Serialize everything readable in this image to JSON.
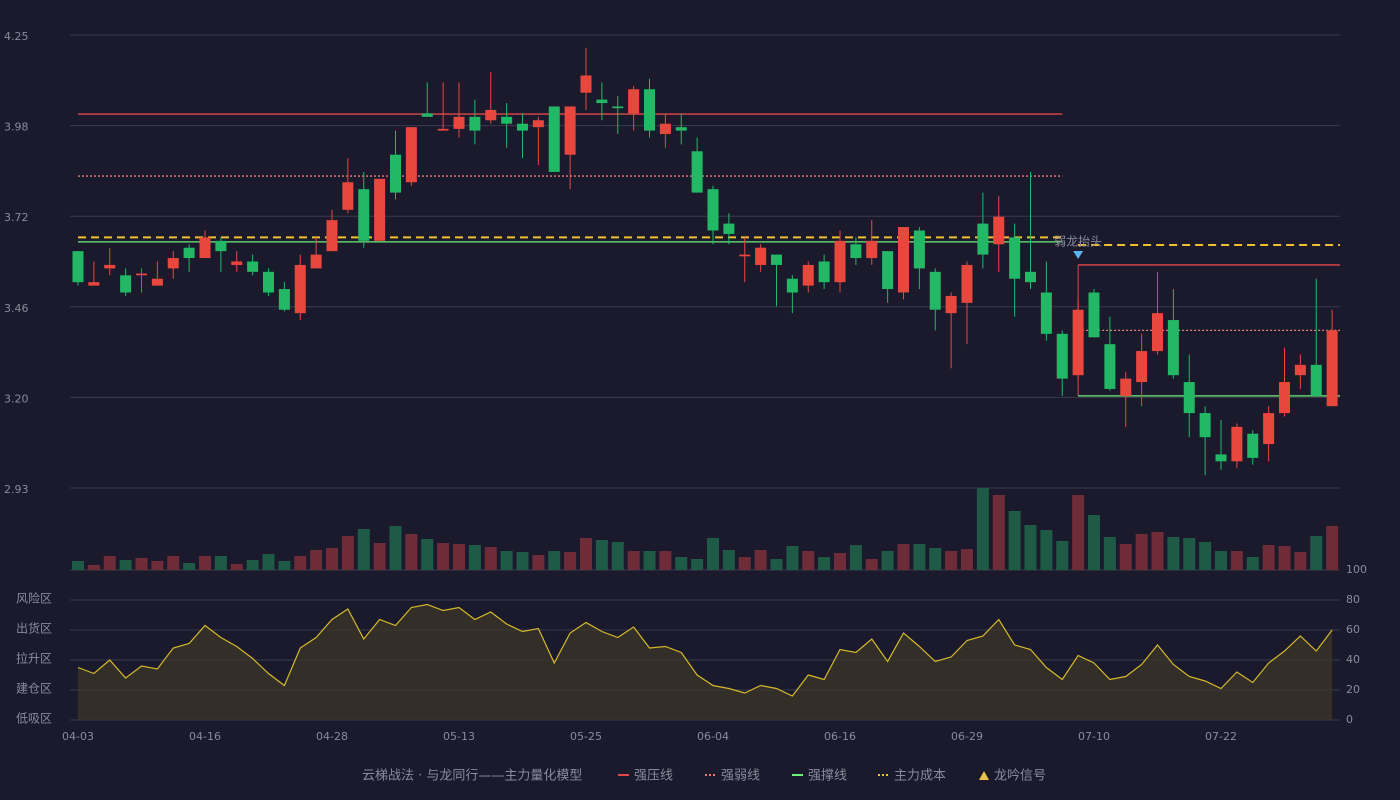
{
  "chart_data": {
    "type": "candlestick",
    "subtitle": "云梯战法 · 与龙同行——主力量化模型",
    "subtitle_color": "#e8c070",
    "categories": [
      "04-03",
      null,
      null,
      null,
      null,
      null,
      null,
      null,
      "04-16",
      null,
      null,
      null,
      null,
      null,
      null,
      null,
      "04-28",
      null,
      null,
      null,
      null,
      null,
      null,
      null,
      "05-13",
      null,
      null,
      null,
      null,
      null,
      null,
      null,
      "05-25",
      null,
      null,
      null,
      null,
      null,
      null,
      null,
      "06-04",
      null,
      null,
      null,
      null,
      null,
      null,
      null,
      "06-16",
      null,
      null,
      null,
      null,
      null,
      null,
      null,
      "06-29",
      null,
      null,
      null,
      null,
      null,
      null,
      null,
      "07-10",
      null,
      null,
      null,
      null,
      null,
      null,
      null,
      "07-22",
      null,
      null,
      null,
      null,
      null,
      null,
      null
    ],
    "open": [
      3.62,
      3.52,
      3.57,
      3.55,
      3.55,
      3.52,
      3.57,
      3.63,
      3.6,
      3.65,
      3.58,
      3.59,
      3.56,
      3.51,
      3.44,
      3.57,
      3.62,
      3.74,
      3.8,
      3.65,
      3.9,
      3.82,
      4.02,
      3.97,
      3.975,
      4.01,
      4.0,
      4.01,
      3.99,
      3.98,
      4.04,
      3.9,
      4.08,
      4.06,
      4.04,
      4.02,
      4.09,
      3.96,
      3.98,
      3.91,
      3.8,
      3.7,
      3.605,
      3.58,
      3.61,
      3.54,
      3.52,
      3.59,
      3.53,
      3.64,
      3.6,
      3.62,
      3.5,
      3.68,
      3.56,
      3.44,
      3.47,
      3.7,
      3.64,
      3.66,
      3.56,
      3.5,
      3.38,
      3.26,
      3.5,
      3.35,
      3.2,
      3.24,
      3.33,
      3.42,
      3.24,
      3.15,
      3.03,
      3.01,
      3.09,
      3.06,
      3.15,
      3.26,
      3.29,
      3.17
    ],
    "close": [
      3.53,
      3.53,
      3.58,
      3.5,
      3.555,
      3.54,
      3.6,
      3.6,
      3.66,
      3.62,
      3.59,
      3.56,
      3.5,
      3.45,
      3.58,
      3.61,
      3.71,
      3.82,
      3.65,
      3.83,
      3.79,
      3.98,
      4.01,
      3.975,
      4.01,
      3.97,
      4.03,
      3.99,
      3.97,
      4.0,
      3.85,
      4.04,
      4.13,
      4.05,
      4.035,
      4.09,
      3.97,
      3.99,
      3.97,
      3.79,
      3.68,
      3.67,
      3.61,
      3.63,
      3.58,
      3.5,
      3.58,
      3.53,
      3.65,
      3.6,
      3.65,
      3.51,
      3.69,
      3.57,
      3.45,
      3.49,
      3.58,
      3.61,
      3.72,
      3.54,
      3.53,
      3.38,
      3.25,
      3.45,
      3.37,
      3.22,
      3.25,
      3.33,
      3.44,
      3.26,
      3.15,
      3.08,
      3.01,
      3.11,
      3.02,
      3.15,
      3.24,
      3.29,
      3.2,
      3.39
    ],
    "high": [
      3.62,
      3.59,
      3.63,
      3.57,
      3.57,
      3.59,
      3.62,
      3.64,
      3.68,
      3.66,
      3.62,
      3.61,
      3.57,
      3.53,
      3.61,
      3.66,
      3.74,
      3.89,
      3.85,
      3.83,
      3.97,
      3.98,
      4.11,
      4.11,
      4.11,
      4.06,
      4.14,
      4.05,
      4.02,
      4.01,
      4.04,
      4.04,
      4.21,
      4.11,
      4.07,
      4.1,
      4.12,
      4.02,
      4.02,
      3.95,
      3.81,
      3.73,
      3.66,
      3.64,
      3.61,
      3.55,
      3.59,
      3.61,
      3.68,
      3.66,
      3.71,
      3.62,
      3.69,
      3.69,
      3.57,
      3.5,
      3.59,
      3.79,
      3.78,
      3.7,
      3.85,
      3.59,
      3.39,
      3.48,
      3.51,
      3.43,
      3.27,
      3.38,
      3.56,
      3.51,
      3.32,
      3.17,
      3.13,
      3.12,
      3.1,
      3.17,
      3.34,
      3.32,
      3.54,
      3.45
    ],
    "low": [
      3.52,
      3.52,
      3.55,
      3.49,
      3.5,
      3.52,
      3.54,
      3.56,
      3.6,
      3.56,
      3.56,
      3.55,
      3.49,
      3.445,
      3.42,
      3.57,
      3.62,
      3.73,
      3.63,
      3.65,
      3.77,
      3.81,
      4.01,
      3.97,
      3.95,
      3.93,
      3.99,
      3.92,
      3.89,
      3.87,
      3.85,
      3.8,
      4.03,
      4.0,
      3.96,
      3.97,
      3.95,
      3.92,
      3.93,
      3.79,
      3.64,
      3.64,
      3.53,
      3.56,
      3.46,
      3.44,
      3.5,
      3.51,
      3.5,
      3.58,
      3.58,
      3.47,
      3.48,
      3.51,
      3.39,
      3.28,
      3.35,
      3.57,
      3.56,
      3.43,
      3.51,
      3.36,
      3.2,
      3.25,
      3.37,
      3.215,
      3.11,
      3.17,
      3.32,
      3.25,
      3.08,
      2.97,
      2.985,
      2.99,
      3.0,
      3.01,
      3.14,
      3.22,
      3.2,
      3.17
    ],
    "up_color": "#e8473e",
    "down_color": "#22b865",
    "ylim": [
      2.9325,
      4.2475
    ],
    "yticks": [
      {
        "value": 2.9325,
        "label": "2.93"
      },
      {
        "value": 3.1955,
        "label": "3.20"
      },
      {
        "value": 3.4585,
        "label": "3.46"
      },
      {
        "value": 3.7215,
        "label": "3.72"
      },
      {
        "value": 3.9845,
        "label": "3.98"
      },
      {
        "value": 4.2475,
        "label": "4.25"
      }
    ],
    "grid": true,
    "levels": [
      {
        "name": "强压线",
        "color": "#e04848",
        "dash": "solid",
        "values": [
          4.018,
          4.018,
          4.018,
          4.018,
          4.018,
          4.018,
          4.018,
          4.018,
          4.018,
          4.018,
          4.018,
          4.018,
          4.018,
          4.018,
          4.018,
          4.018,
          4.018,
          4.018,
          4.018,
          4.018,
          4.018,
          4.018,
          4.018,
          4.018,
          4.018,
          4.018,
          4.018,
          4.018,
          4.018,
          4.018,
          4.018,
          4.018,
          4.018,
          4.018,
          4.018,
          4.018,
          4.018,
          4.018,
          4.018,
          4.018,
          4.018,
          4.018,
          4.018,
          4.018,
          4.018,
          4.018,
          4.018,
          4.018,
          4.018,
          4.018,
          4.018,
          4.018,
          4.018,
          4.018,
          4.018,
          4.018,
          4.018,
          4.018,
          4.018,
          4.018,
          4.018,
          4.018,
          4.018,
          3.58,
          3.58,
          3.58,
          3.58,
          3.58,
          3.58,
          3.58,
          3.58,
          3.58,
          3.58,
          3.58,
          3.58,
          3.58,
          3.58,
          3.58,
          3.58,
          3.58
        ]
      },
      {
        "name": "强弱线",
        "color": "#f07a7a",
        "dash": "dotted",
        "values": [
          3.838,
          3.838,
          3.838,
          3.838,
          3.838,
          3.838,
          3.838,
          3.838,
          3.838,
          3.838,
          3.838,
          3.838,
          3.838,
          3.838,
          3.838,
          3.838,
          3.838,
          3.838,
          3.838,
          3.838,
          3.838,
          3.838,
          3.838,
          3.838,
          3.838,
          3.838,
          3.838,
          3.838,
          3.838,
          3.838,
          3.838,
          3.838,
          3.838,
          3.838,
          3.838,
          3.838,
          3.838,
          3.838,
          3.838,
          3.838,
          3.838,
          3.838,
          3.838,
          3.838,
          3.838,
          3.838,
          3.838,
          3.838,
          3.838,
          3.838,
          3.838,
          3.838,
          3.838,
          3.838,
          3.838,
          3.838,
          3.838,
          3.838,
          3.838,
          3.838,
          3.838,
          3.838,
          3.838,
          3.39,
          3.39,
          3.39,
          3.39,
          3.39,
          3.39,
          3.39,
          3.39,
          3.39,
          3.39,
          3.39,
          3.39,
          3.39,
          3.39,
          3.39,
          3.39,
          3.39
        ]
      },
      {
        "name": "强撑线",
        "color": "#6ef07a",
        "dash": "solid",
        "values": [
          3.647,
          3.647,
          3.647,
          3.647,
          3.647,
          3.647,
          3.647,
          3.647,
          3.647,
          3.647,
          3.647,
          3.647,
          3.647,
          3.647,
          3.647,
          3.647,
          3.647,
          3.647,
          3.647,
          3.647,
          3.647,
          3.647,
          3.647,
          3.647,
          3.647,
          3.647,
          3.647,
          3.647,
          3.647,
          3.647,
          3.647,
          3.647,
          3.647,
          3.647,
          3.647,
          3.647,
          3.647,
          3.647,
          3.647,
          3.647,
          3.647,
          3.647,
          3.647,
          3.647,
          3.647,
          3.647,
          3.647,
          3.647,
          3.647,
          3.647,
          3.647,
          3.647,
          3.647,
          3.647,
          3.647,
          3.647,
          3.647,
          3.647,
          3.647,
          3.647,
          3.647,
          3.647,
          3.647,
          3.2,
          3.2,
          3.2,
          3.2,
          3.2,
          3.2,
          3.2,
          3.2,
          3.2,
          3.2,
          3.2,
          3.2,
          3.2,
          3.2,
          3.2,
          3.2,
          3.2
        ]
      },
      {
        "name": "主力成本",
        "color": "#f0c030",
        "dash": "dashed",
        "values": [
          3.66,
          3.66,
          3.66,
          3.66,
          3.66,
          3.66,
          3.66,
          3.66,
          3.66,
          3.66,
          3.66,
          3.66,
          3.66,
          3.66,
          3.66,
          3.66,
          3.66,
          3.66,
          3.66,
          3.66,
          3.66,
          3.66,
          3.66,
          3.66,
          3.66,
          3.66,
          3.66,
          3.66,
          3.66,
          3.66,
          3.66,
          3.66,
          3.66,
          3.66,
          3.66,
          3.66,
          3.66,
          3.66,
          3.66,
          3.66,
          3.66,
          3.66,
          3.66,
          3.66,
          3.66,
          3.66,
          3.66,
          3.66,
          3.66,
          3.66,
          3.66,
          3.66,
          3.66,
          3.66,
          3.66,
          3.66,
          3.66,
          3.66,
          3.66,
          3.66,
          3.66,
          3.66,
          3.66,
          3.638,
          3.638,
          3.638,
          3.638,
          3.638,
          3.638,
          3.638,
          3.638,
          3.638,
          3.638,
          3.638,
          3.638,
          3.638,
          3.638,
          3.638,
          3.638,
          3.638
        ]
      }
    ],
    "signal": {
      "name": "龙吟信号",
      "color": "#e8c54a"
    },
    "annotations": [
      {
        "text": "弱龙抬头",
        "index": 63,
        "color": "#5ab4f0"
      }
    ],
    "volume": {
      "values": [
        9,
        5,
        14,
        10,
        12,
        9,
        14,
        7,
        14,
        14,
        6,
        10,
        16,
        9,
        14,
        20,
        22,
        34,
        41,
        27,
        44,
        36,
        31,
        27,
        26,
        25,
        23,
        19,
        18,
        15,
        19,
        18,
        32,
        30,
        28,
        19,
        19,
        19,
        13,
        11,
        32,
        20,
        13,
        20,
        11,
        24,
        19,
        13,
        17,
        25,
        11,
        19,
        26,
        26,
        22,
        19,
        21,
        82,
        75,
        59,
        45,
        40,
        29,
        75,
        55,
        33,
        26,
        36,
        38,
        33,
        32,
        28,
        19,
        19,
        13,
        25,
        24,
        18,
        34,
        44
      ],
      "up_color": "#6e2c38",
      "down_color": "#1f5a46"
    },
    "oscillator": {
      "values": [
        35,
        31,
        40,
        28,
        36,
        34,
        48,
        51,
        63,
        55,
        49,
        41,
        31,
        23,
        48,
        55,
        67,
        74,
        54,
        67,
        63,
        75,
        77,
        73,
        75,
        67,
        72,
        64,
        59,
        61,
        38,
        58,
        65,
        59,
        55,
        62,
        48,
        49,
        45,
        30,
        23,
        21,
        18,
        23,
        21,
        16,
        30,
        27,
        47,
        45,
        54,
        39,
        58,
        49,
        39,
        42,
        53,
        56,
        67,
        50,
        47,
        35,
        27,
        43,
        38,
        27,
        29,
        37,
        50,
        37,
        29,
        26,
        21,
        32,
        25,
        38,
        46,
        56,
        46,
        60
      ],
      "color": "#d4b82a",
      "fill": "#3a3528",
      "ylim": [
        0,
        100
      ],
      "yticks": [
        0,
        20,
        40,
        60,
        80,
        100
      ],
      "ytick_colors": [
        "#e84a4a",
        "#f08a3a",
        "#4a9af0",
        "#e040e0",
        "#f0a030",
        "#40e060"
      ],
      "zones": [
        {
          "label": "低吸区",
          "value": 0,
          "color": "#e84a5a"
        },
        {
          "label": "建仓区",
          "value": 20,
          "color": "#e86050"
        },
        {
          "label": "拉升区",
          "value": 40,
          "color": "#4aa0f0"
        },
        {
          "label": "出货区",
          "value": 60,
          "color": "#e040e0"
        },
        {
          "label": "风险区",
          "value": 80,
          "color": "#f0a030"
        }
      ]
    }
  }
}
